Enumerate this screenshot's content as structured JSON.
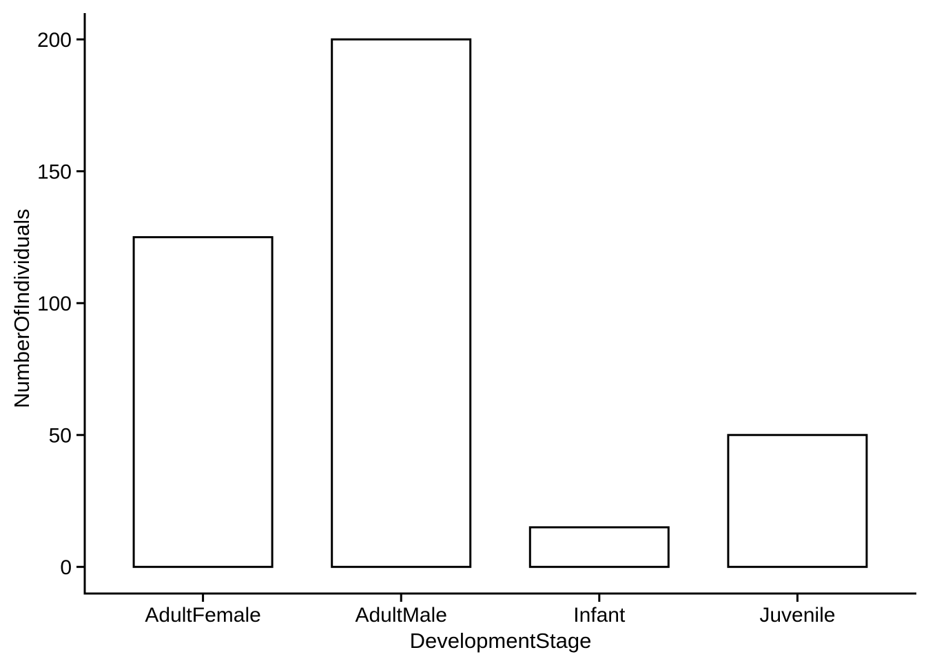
{
  "chart_data": {
    "type": "bar",
    "categories": [
      "AdultFemale",
      "AdultMale",
      "Infant",
      "Juvenile"
    ],
    "values": [
      125,
      200,
      15,
      50
    ],
    "xlabel": "DevelopmentStage",
    "ylabel": "NumberOfIndividuals",
    "ylim": [
      0,
      200
    ],
    "yticks": [
      0,
      50,
      100,
      150,
      200
    ],
    "grid": false,
    "legend": false,
    "colors": {
      "bar_fill": "#FFFFFF",
      "bar_stroke": "#000000",
      "axis_line": "#000000",
      "text": "#000000",
      "background": "#FFFFFF"
    }
  }
}
